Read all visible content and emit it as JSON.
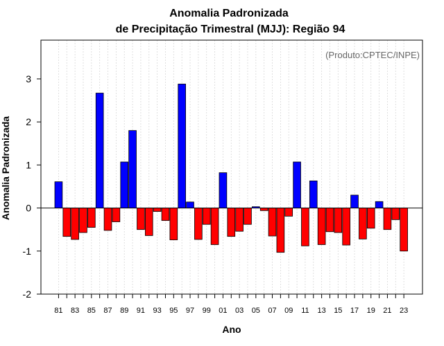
{
  "chart_data": {
    "type": "bar",
    "title_line1": "Anomalia Padronizada",
    "title_line2": "de Precipitação Trimestral (MJJ): Região 94",
    "xlabel": "Ano",
    "ylabel": "Anomalia Padronizada",
    "credit": "(Produto:CPTEC/INPE)",
    "ylim": [
      -2.0,
      3.9
    ],
    "yticks": [
      -2,
      -1,
      0,
      1,
      2,
      3
    ],
    "x_tick_labels": [
      "81",
      "83",
      "85",
      "87",
      "89",
      "91",
      "93",
      "95",
      "97",
      "99",
      "01",
      "03",
      "05",
      "07",
      "09",
      "11",
      "13",
      "15",
      "17",
      "19",
      "21",
      "23"
    ],
    "categories": [
      "1981",
      "1982",
      "1983",
      "1984",
      "1985",
      "1986",
      "1987",
      "1988",
      "1989",
      "1990",
      "1991",
      "1992",
      "1993",
      "1994",
      "1995",
      "1996",
      "1997",
      "1998",
      "1999",
      "2000",
      "2001",
      "2002",
      "2003",
      "2004",
      "2005",
      "2006",
      "2007",
      "2008",
      "2009",
      "2010",
      "2011",
      "2012",
      "2013",
      "2014",
      "2015",
      "2016",
      "2017",
      "2018",
      "2019",
      "2020",
      "2021",
      "2022",
      "2023"
    ],
    "values": [
      0.61,
      -0.66,
      -0.73,
      -0.57,
      -0.45,
      2.67,
      -0.52,
      -0.32,
      1.07,
      1.8,
      -0.5,
      -0.64,
      -0.08,
      -0.29,
      -0.74,
      2.88,
      0.14,
      -0.73,
      -0.38,
      -0.85,
      0.82,
      -0.66,
      -0.54,
      -0.38,
      0.03,
      -0.06,
      -0.65,
      -1.03,
      -0.19,
      1.07,
      -0.88,
      0.63,
      -0.85,
      -0.55,
      -0.57,
      -0.86,
      0.3,
      -0.72,
      -0.47,
      0.15,
      -0.5,
      -0.27,
      -1.0
    ],
    "positive_color": "#0000ff",
    "negative_color": "#ff0000",
    "grid": true
  }
}
